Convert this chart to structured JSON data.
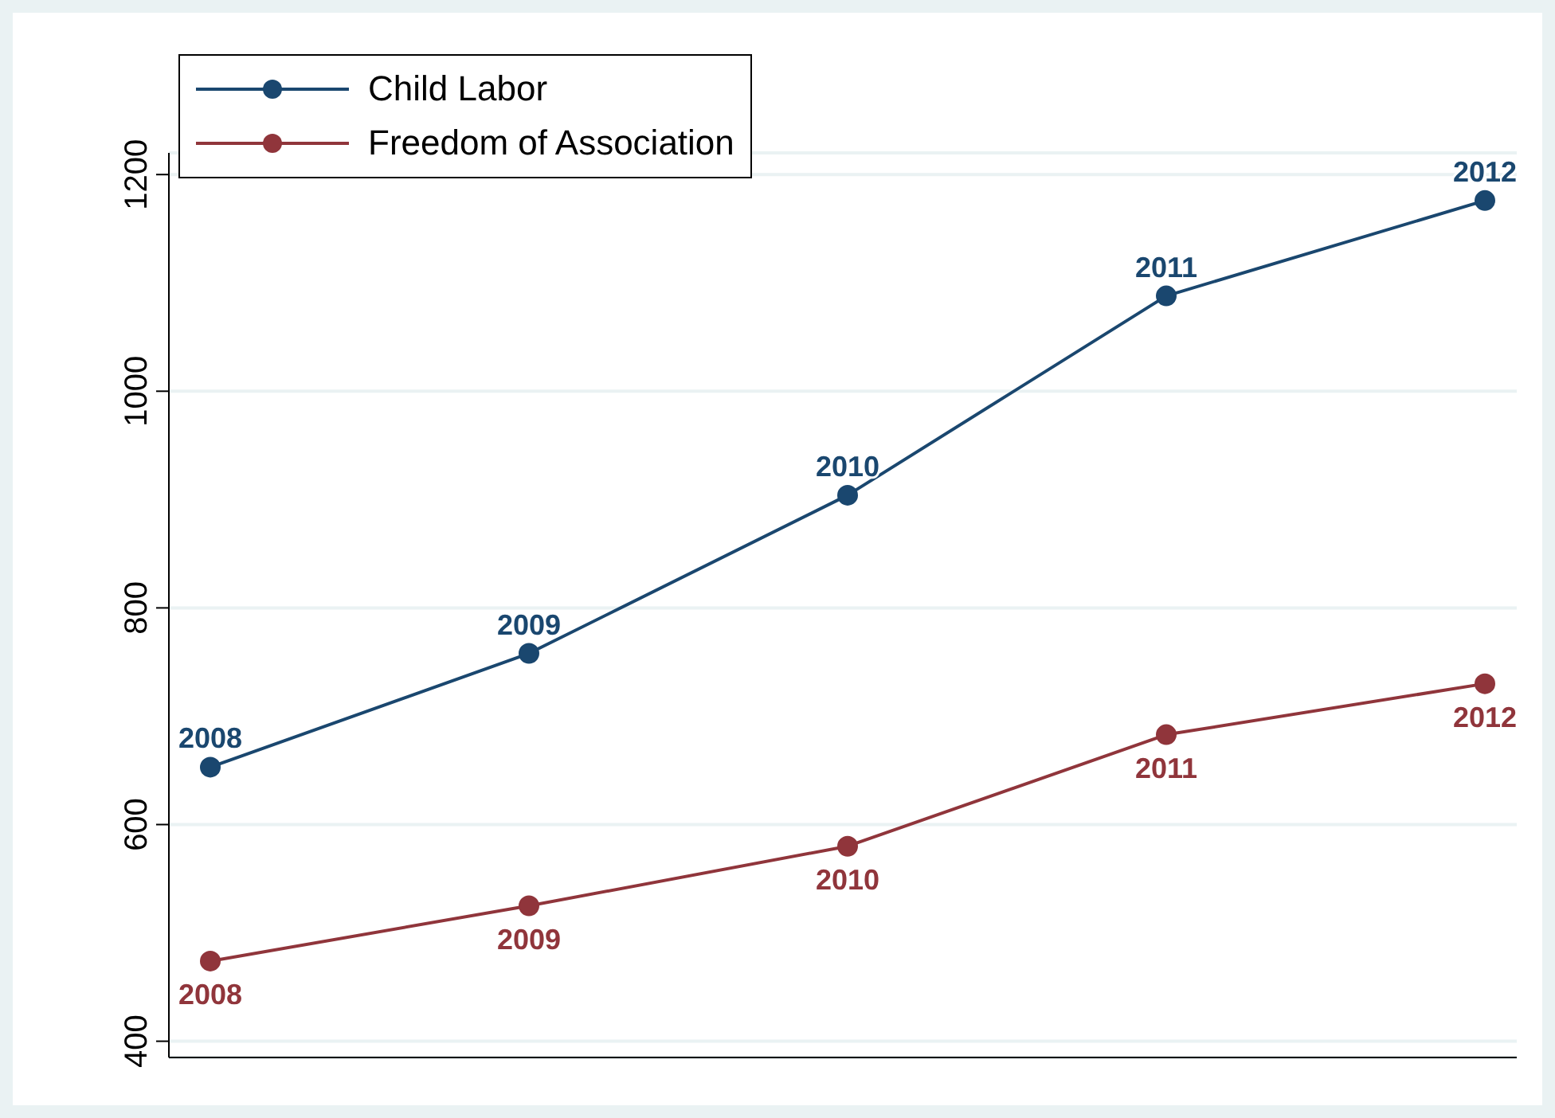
{
  "chart_data": {
    "type": "line",
    "categories": [
      null,
      null,
      null,
      null,
      null
    ],
    "series": [
      {
        "name": "Child Labor",
        "color": "#1a476f",
        "values": [
          653,
          758,
          904,
          1088,
          1176
        ]
      },
      {
        "name": "Freedom of Association",
        "color": "#90353b",
        "values": [
          474,
          525,
          580,
          683,
          730
        ]
      }
    ],
    "annotations": [
      {
        "text": "2008",
        "y": 653
      },
      {
        "text": "2009",
        "y": 758
      },
      {
        "text": "2010",
        "y": 904
      },
      {
        "text": "2011",
        "y": 1088
      },
      {
        "text": "2012",
        "y": 1176
      },
      {
        "text": "2008",
        "y": 474
      },
      {
        "text": "2009",
        "y": 525
      },
      {
        "text": "2010",
        "y": 580
      },
      {
        "text": "2011",
        "y": 683
      },
      {
        "text": "2012",
        "y": 730
      }
    ],
    "ylim": [
      385,
      1220
    ],
    "yticks": [
      400,
      600,
      800,
      1000,
      1200
    ],
    "grid": "y",
    "legend": "top left",
    "marker": "circle",
    "line_style": "solid"
  }
}
